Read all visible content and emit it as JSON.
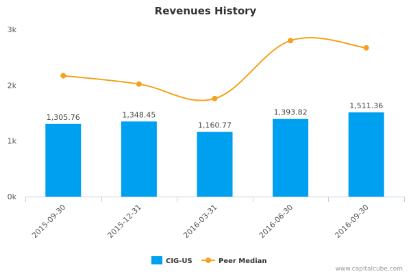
{
  "chart_data": {
    "type": "bar",
    "title": "Revenues History",
    "categories": [
      "2015-09-30",
      "2015-12-31",
      "2016-03-31",
      "2016-06-30",
      "2016-09-30"
    ],
    "series": [
      {
        "name": "CIG-US",
        "type": "bar",
        "color": "#00a0f0",
        "values": [
          1305.76,
          1348.45,
          1160.77,
          1393.82,
          1511.36
        ],
        "labels": [
          "1,305.76",
          "1,348.45",
          "1,160.77",
          "1,393.82",
          "1,511.36"
        ]
      },
      {
        "name": "Peer Median",
        "type": "line",
        "color": "#f5a11c",
        "values": [
          2170,
          2020,
          1760,
          2800,
          2670
        ]
      }
    ],
    "ylim": [
      0,
      3000
    ],
    "yticks": [
      0,
      1000,
      2000,
      3000
    ],
    "ytick_labels": [
      "0k",
      "1k",
      "2k",
      "3k"
    ],
    "grid": false,
    "legend": "bottom-center"
  },
  "footer": {
    "credit": "www.capitalcube.com"
  }
}
